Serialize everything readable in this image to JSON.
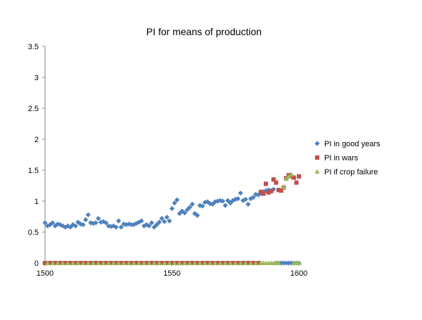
{
  "colors": {
    "good_years": "#4F81BD",
    "wars": "#C0504D",
    "crop_failure": "#9BBB59",
    "axis": "#868686"
  },
  "chart_data": {
    "type": "scatter",
    "title": "PI for means of production",
    "xlabel": "",
    "ylabel": "",
    "xlim": [
      1500,
      1600
    ],
    "ylim": [
      0,
      3.5
    ],
    "x_ticks": [
      "1500",
      "1550",
      "1600"
    ],
    "y_ticks": [
      "0",
      "0.5",
      "1",
      "1.5",
      "2",
      "2.5",
      "3",
      "3.5"
    ],
    "grid": false,
    "legend_position": "right",
    "series": [
      {
        "name": "PI in good years",
        "marker": "diamond",
        "points": [
          [
            1500,
            0.65
          ],
          [
            1501,
            0.6
          ],
          [
            1502,
            0.62
          ],
          [
            1503,
            0.65
          ],
          [
            1504,
            0.6
          ],
          [
            1505,
            0.63
          ],
          [
            1506,
            0.62
          ],
          [
            1507,
            0.6
          ],
          [
            1508,
            0.58
          ],
          [
            1509,
            0.6
          ],
          [
            1510,
            0.58
          ],
          [
            1511,
            0.62
          ],
          [
            1512,
            0.6
          ],
          [
            1513,
            0.66
          ],
          [
            1514,
            0.63
          ],
          [
            1515,
            0.62
          ],
          [
            1516,
            0.7
          ],
          [
            1517,
            0.78
          ],
          [
            1518,
            0.65
          ],
          [
            1519,
            0.64
          ],
          [
            1520,
            0.65
          ],
          [
            1521,
            0.72
          ],
          [
            1522,
            0.66
          ],
          [
            1523,
            0.67
          ],
          [
            1524,
            0.65
          ],
          [
            1525,
            0.6
          ],
          [
            1526,
            0.59
          ],
          [
            1527,
            0.6
          ],
          [
            1528,
            0.58
          ],
          [
            1529,
            0.68
          ],
          [
            1530,
            0.58
          ],
          [
            1531,
            0.63
          ],
          [
            1532,
            0.62
          ],
          [
            1533,
            0.63
          ],
          [
            1534,
            0.62
          ],
          [
            1535,
            0.62
          ],
          [
            1536,
            0.64
          ],
          [
            1537,
            0.66
          ],
          [
            1538,
            0.68
          ],
          [
            1539,
            0.6
          ],
          [
            1540,
            0.62
          ],
          [
            1541,
            0.6
          ],
          [
            1542,
            0.65
          ],
          [
            1543,
            0.58
          ],
          [
            1544,
            0.62
          ],
          [
            1545,
            0.66
          ],
          [
            1546,
            0.72
          ],
          [
            1547,
            0.67
          ],
          [
            1548,
            0.74
          ],
          [
            1549,
            0.68
          ],
          [
            1550,
            0.88
          ],
          [
            1551,
            0.97
          ],
          [
            1552,
            1.02
          ],
          [
            1553,
            0.8
          ],
          [
            1554,
            0.84
          ],
          [
            1555,
            0.81
          ],
          [
            1556,
            0.86
          ],
          [
            1557,
            0.9
          ],
          [
            1558,
            0.95
          ],
          [
            1559,
            0.8
          ],
          [
            1560,
            0.77
          ],
          [
            1561,
            0.93
          ],
          [
            1562,
            0.92
          ],
          [
            1563,
            0.98
          ],
          [
            1564,
            0.99
          ],
          [
            1565,
            0.96
          ],
          [
            1566,
            0.95
          ],
          [
            1567,
            0.99
          ],
          [
            1568,
            1.0
          ],
          [
            1569,
            1.01
          ],
          [
            1570,
            1.0
          ],
          [
            1571,
            0.93
          ],
          [
            1572,
            1.01
          ],
          [
            1573,
            0.97
          ],
          [
            1574,
            1.01
          ],
          [
            1575,
            1.03
          ],
          [
            1576,
            1.04
          ],
          [
            1577,
            1.13
          ],
          [
            1578,
            1.01
          ],
          [
            1579,
            1.03
          ],
          [
            1580,
            0.95
          ],
          [
            1581,
            1.04
          ],
          [
            1582,
            1.06
          ],
          [
            1583,
            1.11
          ],
          [
            1584,
            1.1
          ],
          [
            1585,
            1.13
          ],
          [
            1586,
            1.15
          ],
          [
            1587,
            1.17
          ],
          [
            1588,
            1.18
          ],
          [
            1589,
            1.17
          ],
          [
            1590,
            1.19
          ],
          [
            1591,
            0
          ],
          [
            1592,
            0
          ],
          [
            1593,
            0
          ],
          [
            1594,
            0
          ],
          [
            1595,
            0
          ],
          [
            1596,
            0
          ],
          [
            1597,
            0
          ],
          [
            1598,
            0
          ],
          [
            1599,
            0
          ],
          [
            1600,
            0
          ]
        ]
      },
      {
        "name": "PI in wars",
        "marker": "square",
        "points": [
          [
            1500,
            0
          ],
          [
            1502,
            0
          ],
          [
            1504,
            0
          ],
          [
            1506,
            0
          ],
          [
            1508,
            0
          ],
          [
            1510,
            0
          ],
          [
            1512,
            0
          ],
          [
            1514,
            0
          ],
          [
            1516,
            0
          ],
          [
            1518,
            0
          ],
          [
            1520,
            0
          ],
          [
            1522,
            0
          ],
          [
            1524,
            0
          ],
          [
            1526,
            0
          ],
          [
            1528,
            0
          ],
          [
            1530,
            0
          ],
          [
            1532,
            0
          ],
          [
            1534,
            0
          ],
          [
            1536,
            0
          ],
          [
            1538,
            0
          ],
          [
            1540,
            0
          ],
          [
            1542,
            0
          ],
          [
            1544,
            0
          ],
          [
            1546,
            0
          ],
          [
            1548,
            0
          ],
          [
            1550,
            0
          ],
          [
            1552,
            0
          ],
          [
            1554,
            0
          ],
          [
            1556,
            0
          ],
          [
            1558,
            0
          ],
          [
            1560,
            0
          ],
          [
            1562,
            0
          ],
          [
            1564,
            0
          ],
          [
            1566,
            0
          ],
          [
            1568,
            0
          ],
          [
            1570,
            0
          ],
          [
            1572,
            0
          ],
          [
            1574,
            0
          ],
          [
            1576,
            0
          ],
          [
            1578,
            0
          ],
          [
            1580,
            0
          ],
          [
            1582,
            0
          ],
          [
            1584,
            0
          ],
          [
            1585,
            1.15
          ],
          [
            1586,
            1.12
          ],
          [
            1587,
            1.28
          ],
          [
            1588,
            1.14
          ],
          [
            1589,
            1.16
          ],
          [
            1590,
            1.35
          ],
          [
            1591,
            1.3
          ],
          [
            1592,
            1.18
          ],
          [
            1593,
            1.17
          ],
          [
            1594,
            1.22
          ],
          [
            1595,
            1.37
          ],
          [
            1596,
            1.42
          ],
          [
            1597,
            1.4
          ],
          [
            1598,
            1.38
          ],
          [
            1599,
            1.3
          ],
          [
            1600,
            1.4
          ]
        ]
      },
      {
        "name": "PI if crop failure",
        "marker": "triangle",
        "points": [
          [
            1501,
            0
          ],
          [
            1503,
            0
          ],
          [
            1505,
            0
          ],
          [
            1507,
            0
          ],
          [
            1509,
            0
          ],
          [
            1511,
            0
          ],
          [
            1513,
            0
          ],
          [
            1515,
            0
          ],
          [
            1517,
            0
          ],
          [
            1519,
            0
          ],
          [
            1521,
            0
          ],
          [
            1523,
            0
          ],
          [
            1525,
            0
          ],
          [
            1527,
            0
          ],
          [
            1529,
            0
          ],
          [
            1531,
            0
          ],
          [
            1533,
            0
          ],
          [
            1535,
            0
          ],
          [
            1537,
            0
          ],
          [
            1539,
            0
          ],
          [
            1541,
            0
          ],
          [
            1543,
            0
          ],
          [
            1545,
            0
          ],
          [
            1547,
            0
          ],
          [
            1549,
            0
          ],
          [
            1551,
            0
          ],
          [
            1553,
            0
          ],
          [
            1555,
            0
          ],
          [
            1557,
            0
          ],
          [
            1559,
            0
          ],
          [
            1561,
            0
          ],
          [
            1563,
            0
          ],
          [
            1565,
            0
          ],
          [
            1567,
            0
          ],
          [
            1569,
            0
          ],
          [
            1571,
            0
          ],
          [
            1573,
            0
          ],
          [
            1575,
            0
          ],
          [
            1577,
            0
          ],
          [
            1579,
            0
          ],
          [
            1581,
            0
          ],
          [
            1583,
            0
          ],
          [
            1585,
            0
          ],
          [
            1586,
            0
          ],
          [
            1587,
            0
          ],
          [
            1588,
            0
          ],
          [
            1589,
            0
          ],
          [
            1590,
            0
          ],
          [
            1591,
            0
          ],
          [
            1592,
            0
          ],
          [
            1594,
            1.23
          ],
          [
            1595,
            1.36
          ],
          [
            1596,
            1.4
          ],
          [
            1597,
            1.43
          ],
          [
            1598,
            0
          ],
          [
            1599,
            0
          ],
          [
            1600,
            0
          ]
        ]
      }
    ]
  }
}
